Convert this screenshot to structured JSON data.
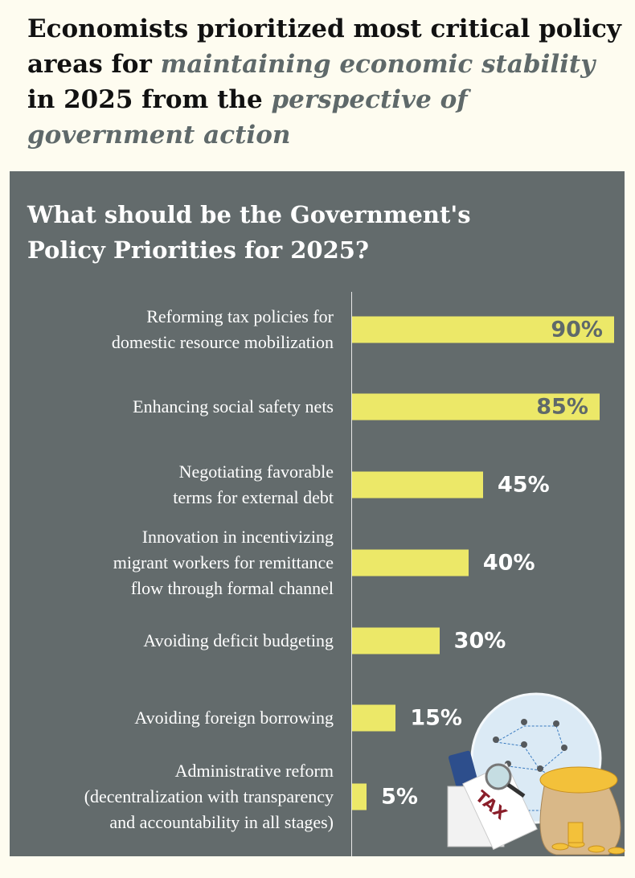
{
  "headline": {
    "part1": "Economists prioritized most critical policy areas for ",
    "em1": "maintaining economic stability",
    "part2": " in 2025 from the ",
    "em2": "perspective of government action"
  },
  "colors": {
    "panel": "#636b6c",
    "bar": "#ece868",
    "background": "#fefcf0",
    "accent_text": "#5f696a"
  },
  "chart_data": {
    "type": "bar",
    "orientation": "horizontal",
    "title": "What should be the Government's Policy Priorities for 2025?",
    "categories": [
      "Reforming tax policies for domestic resource mobilization",
      "Enhancing social safety nets",
      "Negotiating favorable terms for external debt",
      "Innovation in incentivizing migrant workers for remittance flow through formal channel",
      "Avoiding deficit budgeting",
      "Avoiding foreign borrowing",
      "Administrative reform (decentralization with transparency and accountability in all stages)"
    ],
    "values": [
      90,
      85,
      45,
      40,
      30,
      15,
      5
    ],
    "value_labels": [
      "90%",
      "85%",
      "45%",
      "40%",
      "30%",
      "15%",
      "5%"
    ],
    "xlim": [
      0,
      100
    ],
    "grid": false,
    "label_lines": [
      [
        "Reforming tax policies for",
        "domestic resource mobilization"
      ],
      [
        "Enhancing social safety nets"
      ],
      [
        "Negotiating favorable",
        "terms for external debt"
      ],
      [
        "Innovation in incentivizing",
        "migrant workers for remittance",
        "flow through formal channel"
      ],
      [
        "Avoiding deficit budgeting"
      ],
      [
        "Avoiding foreign borrowing"
      ],
      [
        "Administrative reform",
        "(decentralization with transparency",
        "and accountability in all stages)"
      ]
    ]
  },
  "illustration": {
    "tax_label": "TAX"
  }
}
